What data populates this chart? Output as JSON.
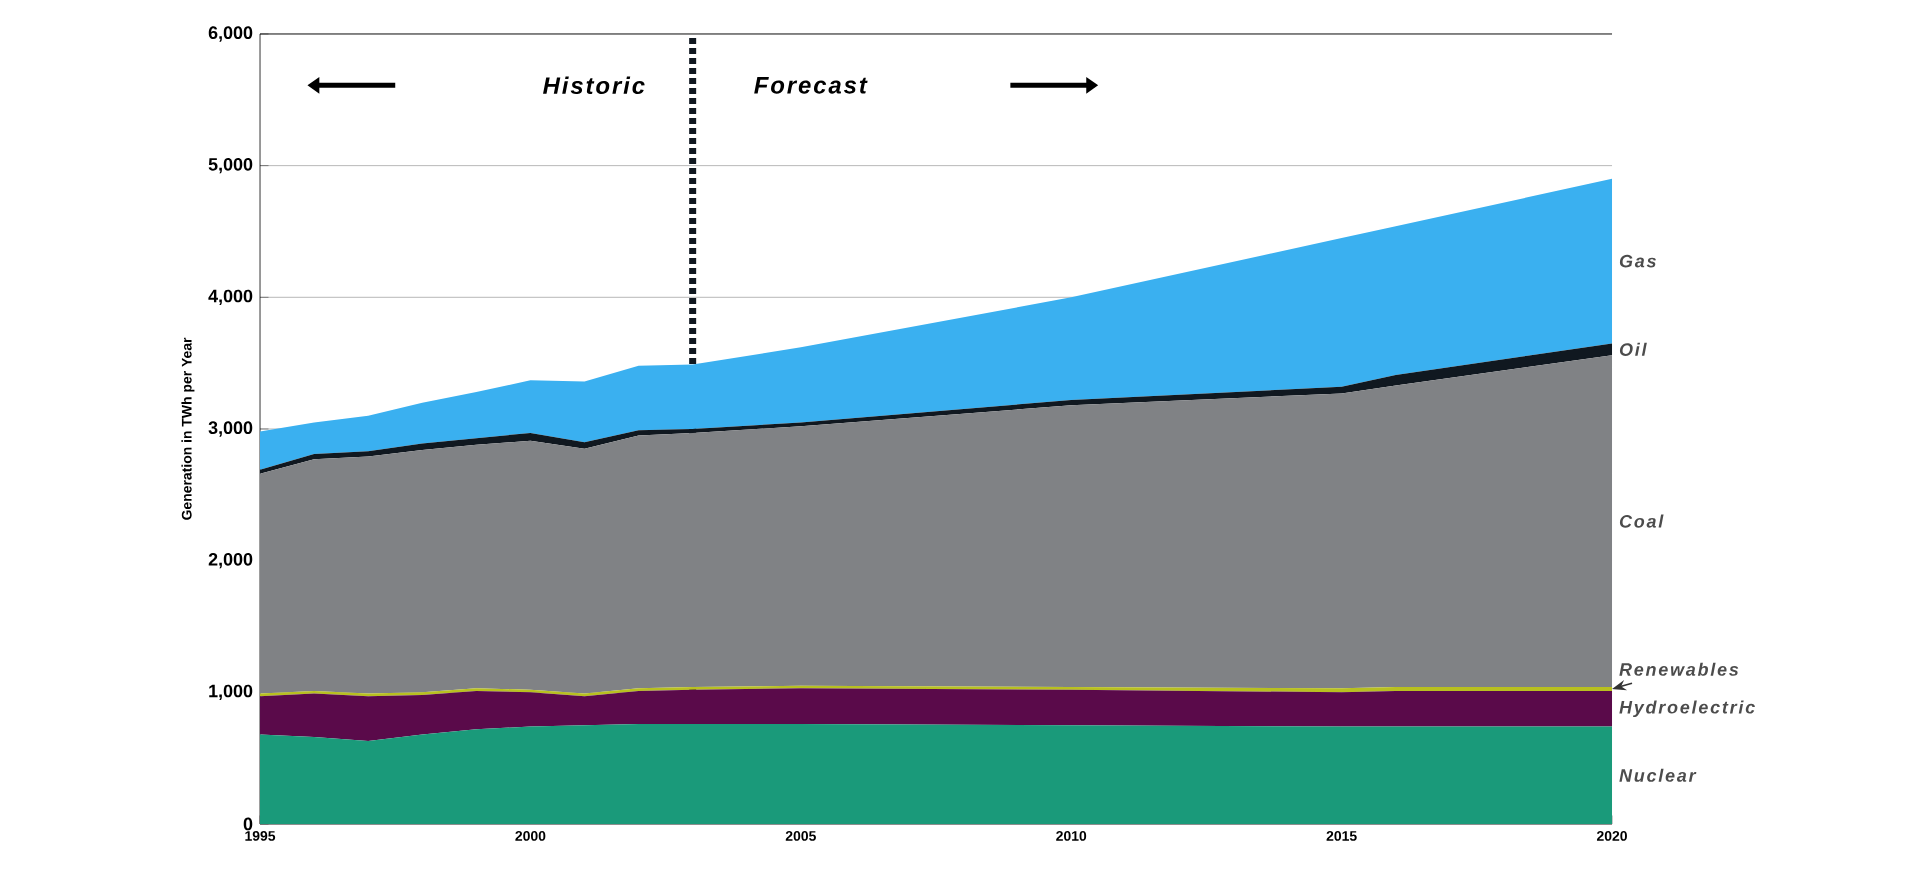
{
  "chart_data": {
    "type": "area",
    "stacked": true,
    "ylabel": "Generation in TWh per Year",
    "x": [
      1995,
      1996,
      1997,
      1998,
      1999,
      2000,
      2001,
      2002,
      2003,
      2005,
      2010,
      2015,
      2016,
      2020
    ],
    "series": [
      {
        "name": "Nuclear",
        "color": "#1a9a7a",
        "values": [
          680,
          660,
          630,
          680,
          720,
          740,
          750,
          760,
          760,
          760,
          750,
          740,
          740,
          740
        ]
      },
      {
        "name": "Hydroelectric",
        "color": "#5a0a4a",
        "values": [
          290,
          330,
          340,
          300,
          290,
          260,
          220,
          250,
          260,
          270,
          270,
          260,
          270,
          270
        ]
      },
      {
        "name": "Renewables",
        "color": "#b8c020",
        "values": [
          20,
          20,
          20,
          20,
          20,
          20,
          20,
          20,
          20,
          20,
          20,
          30,
          30,
          30
        ]
      },
      {
        "name": "Coal",
        "color": "#808285",
        "values": [
          1670,
          1760,
          1800,
          1840,
          1850,
          1890,
          1860,
          1920,
          1930,
          1970,
          2140,
          2240,
          2290,
          2520
        ]
      },
      {
        "name": "Oil",
        "color": "#101820",
        "values": [
          30,
          40,
          40,
          50,
          50,
          60,
          50,
          40,
          30,
          30,
          40,
          50,
          80,
          90
        ]
      },
      {
        "name": "Gas",
        "color": "#3ab0f0",
        "values": [
          290,
          240,
          270,
          310,
          350,
          400,
          460,
          490,
          490,
          570,
          780,
          1130,
          1130,
          1250
        ]
      }
    ],
    "xlim": [
      1995,
      2020
    ],
    "xticks": [
      1995,
      2000,
      2005,
      2010,
      2015,
      2020
    ],
    "ylim": [
      0,
      6000
    ],
    "yticks": [
      {
        "value": 0,
        "label": "0"
      },
      {
        "value": 1000,
        "label": "1,000"
      },
      {
        "value": 2000,
        "label": "2,000"
      },
      {
        "value": 3000,
        "label": "3,000"
      },
      {
        "value": 4000,
        "label": "4,000"
      },
      {
        "value": 5000,
        "label": "5,000"
      },
      {
        "value": 6000,
        "label": "6,000"
      }
    ],
    "grid": "y",
    "legend": false,
    "ref_lines": [
      {
        "axis": "x",
        "value": 2003,
        "color": "#101820",
        "line_style": "dotted"
      }
    ],
    "annotations": [
      "Historic",
      "Forecast"
    ]
  }
}
